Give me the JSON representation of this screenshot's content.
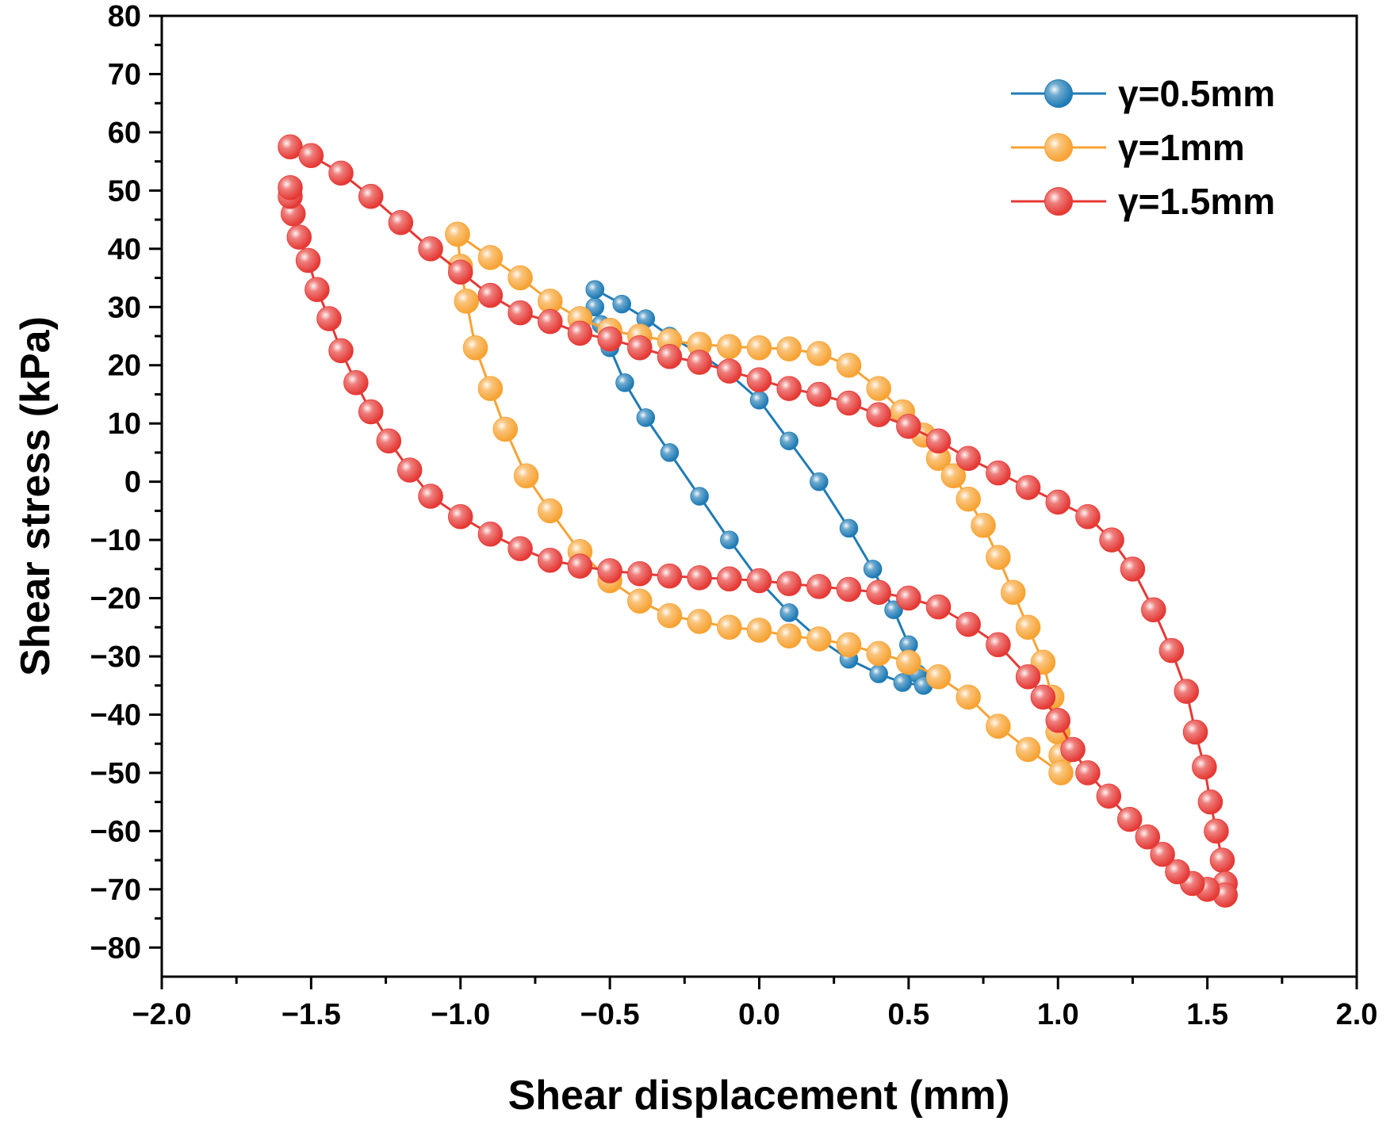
{
  "chart_data": {
    "type": "scatter",
    "title": "",
    "xlabel": "Shear displacement (mm)",
    "ylabel": "Shear stress (kPa)",
    "xlim": [
      -2.0,
      2.0
    ],
    "ylim": [
      -85,
      80
    ],
    "xticks": [
      -2.0,
      -1.5,
      -1.0,
      -0.5,
      0.0,
      0.5,
      1.0,
      1.5,
      2.0
    ],
    "xtick_labels": [
      "−2.0",
      "−1.5",
      "−1.0",
      "−0.5",
      "0.0",
      "0.5",
      "1.0",
      "1.5",
      "2.0"
    ],
    "yticks": [
      -80,
      -70,
      -60,
      -50,
      -40,
      -30,
      -20,
      -10,
      0,
      10,
      20,
      30,
      40,
      50,
      60,
      70,
      80
    ],
    "ytick_labels": [
      "−80",
      "−70",
      "−60",
      "−50",
      "−40",
      "−30",
      "−20",
      "−10",
      "0",
      "10",
      "20",
      "30",
      "40",
      "50",
      "60",
      "70",
      "80"
    ],
    "grid": false,
    "legend_position": "top-right",
    "series": [
      {
        "name": "γ=0.5mm",
        "color": "#1f7bb5",
        "marker": "circle",
        "points": [
          [
            -0.55,
            33
          ],
          [
            -0.46,
            30.5
          ],
          [
            -0.38,
            28
          ],
          [
            -0.3,
            25
          ],
          [
            -0.2,
            22
          ],
          [
            -0.1,
            18.5
          ],
          [
            0.0,
            14
          ],
          [
            0.1,
            7
          ],
          [
            0.2,
            0
          ],
          [
            0.3,
            -8
          ],
          [
            0.38,
            -15
          ],
          [
            0.45,
            -22
          ],
          [
            0.5,
            -28
          ],
          [
            0.53,
            -33
          ],
          [
            0.55,
            -35
          ],
          [
            0.48,
            -34.5
          ],
          [
            0.4,
            -33
          ],
          [
            0.3,
            -30.5
          ],
          [
            0.2,
            -27
          ],
          [
            0.1,
            -22.5
          ],
          [
            0.0,
            -17
          ],
          [
            -0.1,
            -10
          ],
          [
            -0.2,
            -2.5
          ],
          [
            -0.3,
            5
          ],
          [
            -0.38,
            11
          ],
          [
            -0.45,
            17
          ],
          [
            -0.5,
            23
          ],
          [
            -0.53,
            27
          ],
          [
            -0.55,
            30
          ],
          [
            -0.55,
            33
          ]
        ]
      },
      {
        "name": "γ=1mm",
        "color": "#f7a333",
        "marker": "circle",
        "points": [
          [
            -1.01,
            42.5
          ],
          [
            -0.9,
            38.5
          ],
          [
            -0.8,
            35
          ],
          [
            -0.7,
            31
          ],
          [
            -0.6,
            28
          ],
          [
            -0.5,
            26
          ],
          [
            -0.4,
            25
          ],
          [
            -0.3,
            24.2
          ],
          [
            -0.2,
            23.6
          ],
          [
            -0.1,
            23.2
          ],
          [
            0.0,
            23
          ],
          [
            0.1,
            22.8
          ],
          [
            0.2,
            22
          ],
          [
            0.3,
            20
          ],
          [
            0.4,
            16
          ],
          [
            0.48,
            12
          ],
          [
            0.55,
            8
          ],
          [
            0.6,
            4
          ],
          [
            0.65,
            1
          ],
          [
            0.7,
            -3
          ],
          [
            0.75,
            -7.5
          ],
          [
            0.8,
            -13
          ],
          [
            0.85,
            -19
          ],
          [
            0.9,
            -25
          ],
          [
            0.95,
            -31
          ],
          [
            0.98,
            -37
          ],
          [
            1.0,
            -43
          ],
          [
            1.01,
            -47
          ],
          [
            1.01,
            -50
          ],
          [
            0.9,
            -46
          ],
          [
            0.8,
            -42
          ],
          [
            0.7,
            -37
          ],
          [
            0.6,
            -33.5
          ],
          [
            0.5,
            -31
          ],
          [
            0.4,
            -29.5
          ],
          [
            0.3,
            -28
          ],
          [
            0.2,
            -27
          ],
          [
            0.1,
            -26.5
          ],
          [
            0.0,
            -25.5
          ],
          [
            -0.1,
            -25
          ],
          [
            -0.2,
            -24
          ],
          [
            -0.3,
            -23
          ],
          [
            -0.4,
            -20.5
          ],
          [
            -0.5,
            -17
          ],
          [
            -0.6,
            -12
          ],
          [
            -0.7,
            -5
          ],
          [
            -0.78,
            1
          ],
          [
            -0.85,
            9
          ],
          [
            -0.9,
            16
          ],
          [
            -0.95,
            23
          ],
          [
            -0.98,
            31
          ],
          [
            -1.0,
            37
          ],
          [
            -1.01,
            42.5
          ]
        ]
      },
      {
        "name": "γ=1.5mm",
        "color": "#e53935",
        "marker": "circle",
        "points": [
          [
            -1.57,
            57.5
          ],
          [
            -1.5,
            56
          ],
          [
            -1.4,
            53
          ],
          [
            -1.3,
            49
          ],
          [
            -1.2,
            44.5
          ],
          [
            -1.1,
            40
          ],
          [
            -1.0,
            36
          ],
          [
            -0.9,
            32
          ],
          [
            -0.8,
            29
          ],
          [
            -0.7,
            27.5
          ],
          [
            -0.6,
            25.5
          ],
          [
            -0.5,
            24.5
          ],
          [
            -0.4,
            23
          ],
          [
            -0.3,
            21.5
          ],
          [
            -0.2,
            20.5
          ],
          [
            -0.1,
            19
          ],
          [
            0.0,
            17.5
          ],
          [
            0.1,
            16
          ],
          [
            0.2,
            15
          ],
          [
            0.3,
            13.5
          ],
          [
            0.4,
            11.5
          ],
          [
            0.5,
            9.5
          ],
          [
            0.6,
            7
          ],
          [
            0.7,
            4
          ],
          [
            0.8,
            1.5
          ],
          [
            0.9,
            -1
          ],
          [
            1.0,
            -3.5
          ],
          [
            1.1,
            -6
          ],
          [
            1.18,
            -10
          ],
          [
            1.25,
            -15
          ],
          [
            1.32,
            -22
          ],
          [
            1.38,
            -29
          ],
          [
            1.43,
            -36
          ],
          [
            1.46,
            -43
          ],
          [
            1.49,
            -49
          ],
          [
            1.51,
            -55
          ],
          [
            1.53,
            -60
          ],
          [
            1.55,
            -65
          ],
          [
            1.56,
            -69
          ],
          [
            1.56,
            -71
          ],
          [
            1.5,
            -70
          ],
          [
            1.45,
            -69
          ],
          [
            1.4,
            -67
          ],
          [
            1.35,
            -64
          ],
          [
            1.3,
            -61
          ],
          [
            1.24,
            -58
          ],
          [
            1.17,
            -54
          ],
          [
            1.1,
            -50
          ],
          [
            1.05,
            -46
          ],
          [
            1.0,
            -41
          ],
          [
            0.95,
            -37
          ],
          [
            0.9,
            -33.5
          ],
          [
            0.8,
            -28
          ],
          [
            0.7,
            -24.5
          ],
          [
            0.6,
            -21.5
          ],
          [
            0.5,
            -20
          ],
          [
            0.4,
            -19
          ],
          [
            0.3,
            -18.5
          ],
          [
            0.2,
            -18
          ],
          [
            0.1,
            -17.5
          ],
          [
            0.0,
            -17
          ],
          [
            -0.1,
            -16.7
          ],
          [
            -0.2,
            -16.5
          ],
          [
            -0.3,
            -16.2
          ],
          [
            -0.4,
            -15.8
          ],
          [
            -0.5,
            -15.3
          ],
          [
            -0.6,
            -14.5
          ],
          [
            -0.7,
            -13.5
          ],
          [
            -0.8,
            -11.5
          ],
          [
            -0.9,
            -9
          ],
          [
            -1.0,
            -6
          ],
          [
            -1.1,
            -2.5
          ],
          [
            -1.17,
            2
          ],
          [
            -1.24,
            7
          ],
          [
            -1.3,
            12
          ],
          [
            -1.35,
            17
          ],
          [
            -1.4,
            22.5
          ],
          [
            -1.44,
            28
          ],
          [
            -1.48,
            33
          ],
          [
            -1.51,
            38
          ],
          [
            -1.54,
            42
          ],
          [
            -1.56,
            46
          ],
          [
            -1.57,
            49
          ],
          [
            -1.57,
            50.5
          ]
        ]
      }
    ]
  }
}
